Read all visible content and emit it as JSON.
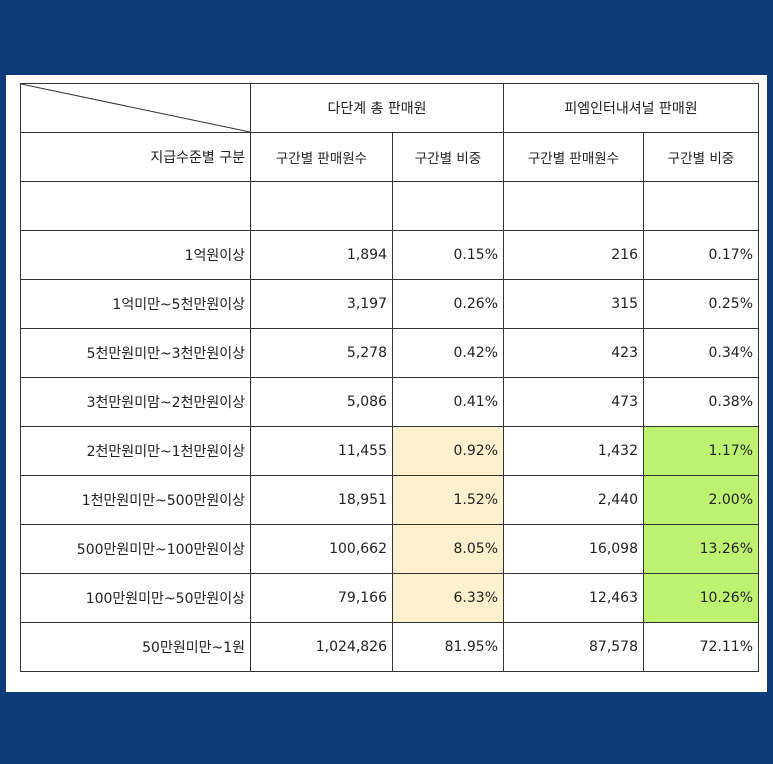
{
  "header": {
    "group1": "다단계 총 판매원",
    "group2": "피엠인터내셔널 판매원",
    "row_header": "지급수준별 구분",
    "col_count": "구간별 판매원수",
    "col_share": "구간별 비중"
  },
  "rows": [
    {
      "label": "1억원이상",
      "count1": "1,894",
      "share1": "0.15%",
      "count2": "216",
      "share2": "0.17%"
    },
    {
      "label": "1억미만~5천만원이상",
      "count1": "3,197",
      "share1": "0.26%",
      "count2": "315",
      "share2": "0.25%"
    },
    {
      "label": "5천만원미만~3천만원이상",
      "count1": "5,278",
      "share1": "0.42%",
      "count2": "423",
      "share2": "0.34%"
    },
    {
      "label": "3천만원미맘~2천만원이상",
      "count1": "5,086",
      "share1": "0.41%",
      "count2": "473",
      "share2": "0.38%"
    },
    {
      "label": "2천만원미만~1천만원이상",
      "count1": "11,455",
      "share1": "0.92%",
      "count2": "1,432",
      "share2": "1.17%"
    },
    {
      "label": "1천만원미만~500만원이상",
      "count1": "18,951",
      "share1": "1.52%",
      "count2": "2,440",
      "share2": "2.00%"
    },
    {
      "label": "500만원미만~100만원이상",
      "count1": "100,662",
      "share1": "8.05%",
      "count2": "16,098",
      "share2": "13.26%"
    },
    {
      "label": "100만원미만~50만원이상",
      "count1": "79,166",
      "share1": "6.33%",
      "count2": "12,463",
      "share2": "10.26%"
    },
    {
      "label": "50만원미만~1원",
      "count1": "1,024,826",
      "share1": "81.95%",
      "count2": "87,578",
      "share2": "72.11%"
    }
  ],
  "colors": {
    "background": "#0d3b7a",
    "highlight_yellow": "#fdf1cd",
    "highlight_green": "#bdf271"
  }
}
